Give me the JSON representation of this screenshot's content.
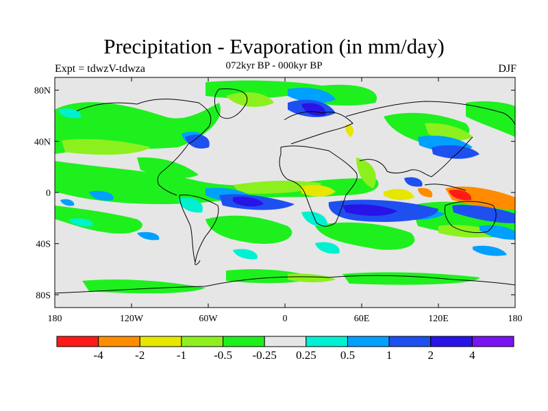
{
  "figure": {
    "title": "Precipitation - Evaporation (in mm/day)",
    "subtitle": "072kyr BP - 000kyr BP",
    "left_label": "Expt = tdwzV-tdwza",
    "right_label": "DJF"
  },
  "axes": {
    "lat_labels": [
      "80N",
      "40N",
      "0",
      "40S",
      "80S"
    ],
    "lat_values": [
      80,
      40,
      0,
      -40,
      -80
    ],
    "lon_labels": [
      "180",
      "120W",
      "60W",
      "0",
      "60E",
      "120E",
      "180"
    ],
    "lon_values": [
      -180,
      -120,
      -60,
      0,
      60,
      120,
      180
    ],
    "lat_range": [
      -90,
      90
    ],
    "lon_range": [
      -180,
      180
    ]
  },
  "colorbar": {
    "colors": [
      "#ff1a1a",
      "#ff8c00",
      "#e6e600",
      "#8cf01e",
      "#1ef01e",
      "#e6e6e6",
      "#00f0d2",
      "#00a0ff",
      "#1e50f0",
      "#2814e6",
      "#7814f0"
    ],
    "labels": [
      "-4",
      "-2",
      "-1",
      "-0.5",
      "-0.25",
      "0.25",
      "0.5",
      "1",
      "2",
      "4"
    ]
  },
  "colors": {
    "background_field": "#e6e6e6",
    "coast": "#000000"
  }
}
